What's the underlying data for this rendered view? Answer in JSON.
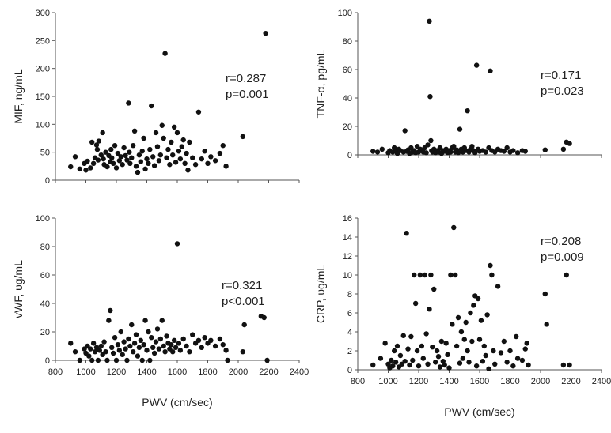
{
  "chart_data": [
    {
      "type": "scatter",
      "ylabel": "MIF, ng/mL",
      "xlabel": "",
      "xlim": [
        800,
        2400
      ],
      "ylim": [
        0,
        300
      ],
      "xticks": [],
      "yticks": [
        "0",
        "50",
        "100",
        "150",
        "200",
        "250",
        "300"
      ],
      "stats": [
        "r=0.287",
        "p=0.001"
      ],
      "points": [
        [
          900,
          24
        ],
        [
          930,
          42
        ],
        [
          960,
          20
        ],
        [
          990,
          30
        ],
        [
          1000,
          18
        ],
        [
          1010,
          34
        ],
        [
          1030,
          22
        ],
        [
          1040,
          68
        ],
        [
          1050,
          30
        ],
        [
          1060,
          40
        ],
        [
          1070,
          63
        ],
        [
          1075,
          55
        ],
        [
          1080,
          36
        ],
        [
          1085,
          70
        ],
        [
          1100,
          45
        ],
        [
          1110,
          85
        ],
        [
          1115,
          38
        ],
        [
          1120,
          28
        ],
        [
          1130,
          50
        ],
        [
          1140,
          24
        ],
        [
          1150,
          44
        ],
        [
          1160,
          33
        ],
        [
          1165,
          55
        ],
        [
          1170,
          40
        ],
        [
          1180,
          30
        ],
        [
          1190,
          62
        ],
        [
          1200,
          22
        ],
        [
          1210,
          48
        ],
        [
          1220,
          35
        ],
        [
          1230,
          42
        ],
        [
          1240,
          28
        ],
        [
          1250,
          58
        ],
        [
          1260,
          44
        ],
        [
          1270,
          36
        ],
        [
          1280,
          138
        ],
        [
          1285,
          50
        ],
        [
          1290,
          30
        ],
        [
          1300,
          40
        ],
        [
          1310,
          62
        ],
        [
          1320,
          88
        ],
        [
          1330,
          25
        ],
        [
          1340,
          14
        ],
        [
          1350,
          45
        ],
        [
          1360,
          33
        ],
        [
          1370,
          52
        ],
        [
          1380,
          75
        ],
        [
          1390,
          20
        ],
        [
          1400,
          38
        ],
        [
          1410,
          30
        ],
        [
          1420,
          55
        ],
        [
          1430,
          133
        ],
        [
          1440,
          42
        ],
        [
          1450,
          26
        ],
        [
          1460,
          85
        ],
        [
          1470,
          60
        ],
        [
          1480,
          35
        ],
        [
          1490,
          45
        ],
        [
          1500,
          98
        ],
        [
          1510,
          75
        ],
        [
          1520,
          227
        ],
        [
          1530,
          40
        ],
        [
          1540,
          55
        ],
        [
          1550,
          28
        ],
        [
          1560,
          68
        ],
        [
          1570,
          45
        ],
        [
          1580,
          95
        ],
        [
          1590,
          32
        ],
        [
          1600,
          85
        ],
        [
          1610,
          52
        ],
        [
          1620,
          38
        ],
        [
          1630,
          60
        ],
        [
          1640,
          72
        ],
        [
          1650,
          30
        ],
        [
          1660,
          48
        ],
        [
          1670,
          18
        ],
        [
          1680,
          68
        ],
        [
          1700,
          40
        ],
        [
          1720,
          28
        ],
        [
          1740,
          122
        ],
        [
          1760,
          38
        ],
        [
          1780,
          52
        ],
        [
          1800,
          30
        ],
        [
          1820,
          42
        ],
        [
          1850,
          35
        ],
        [
          1880,
          48
        ],
        [
          1900,
          62
        ],
        [
          1920,
          25
        ],
        [
          2030,
          78
        ],
        [
          2180,
          263
        ]
      ]
    },
    {
      "type": "scatter",
      "ylabel": "TNF-α, pg/mL",
      "xlabel": "",
      "xlim": [
        800,
        2400
      ],
      "ylim": [
        0,
        100
      ],
      "xticks": [],
      "yticks": [
        "0",
        "20",
        "40",
        "60",
        "80",
        "100"
      ],
      "stats": [
        "r=0.171",
        "p=0.023"
      ],
      "points": [
        [
          900,
          2.5
        ],
        [
          930,
          2
        ],
        [
          960,
          4
        ],
        [
          1000,
          1.5
        ],
        [
          1010,
          3
        ],
        [
          1030,
          2
        ],
        [
          1040,
          5
        ],
        [
          1050,
          2.5
        ],
        [
          1060,
          1
        ],
        [
          1070,
          4
        ],
        [
          1080,
          3
        ],
        [
          1100,
          2
        ],
        [
          1110,
          17
        ],
        [
          1120,
          2.5
        ],
        [
          1130,
          3.5
        ],
        [
          1140,
          1
        ],
        [
          1150,
          5
        ],
        [
          1160,
          2
        ],
        [
          1170,
          3
        ],
        [
          1180,
          1.5
        ],
        [
          1190,
          6
        ],
        [
          1200,
          2
        ],
        [
          1210,
          4
        ],
        [
          1220,
          3
        ],
        [
          1230,
          2
        ],
        [
          1240,
          5
        ],
        [
          1250,
          1.5
        ],
        [
          1260,
          7
        ],
        [
          1270,
          94
        ],
        [
          1275,
          41
        ],
        [
          1280,
          10
        ],
        [
          1285,
          3
        ],
        [
          1290,
          2
        ],
        [
          1300,
          4
        ],
        [
          1310,
          1.5
        ],
        [
          1320,
          3
        ],
        [
          1330,
          2
        ],
        [
          1340,
          5
        ],
        [
          1350,
          1
        ],
        [
          1360,
          3
        ],
        [
          1370,
          2.5
        ],
        [
          1380,
          4
        ],
        [
          1390,
          1.5
        ],
        [
          1400,
          3
        ],
        [
          1410,
          2
        ],
        [
          1420,
          5
        ],
        [
          1430,
          6
        ],
        [
          1440,
          2
        ],
        [
          1450,
          3.5
        ],
        [
          1460,
          1.5
        ],
        [
          1470,
          18
        ],
        [
          1480,
          4
        ],
        [
          1490,
          2
        ],
        [
          1500,
          5
        ],
        [
          1510,
          3
        ],
        [
          1520,
          31
        ],
        [
          1530,
          2
        ],
        [
          1540,
          4
        ],
        [
          1550,
          6
        ],
        [
          1560,
          3
        ],
        [
          1570,
          1.5
        ],
        [
          1580,
          63
        ],
        [
          1590,
          4
        ],
        [
          1600,
          2.5
        ],
        [
          1620,
          3
        ],
        [
          1640,
          2
        ],
        [
          1660,
          5
        ],
        [
          1670,
          59
        ],
        [
          1680,
          3
        ],
        [
          1700,
          2
        ],
        [
          1720,
          4
        ],
        [
          1740,
          3
        ],
        [
          1760,
          2.5
        ],
        [
          1780,
          5
        ],
        [
          1800,
          2
        ],
        [
          1820,
          3
        ],
        [
          1850,
          1.5
        ],
        [
          1880,
          3
        ],
        [
          1900,
          2.5
        ],
        [
          2030,
          3.5
        ],
        [
          2150,
          4
        ],
        [
          2170,
          9
        ],
        [
          2190,
          8
        ]
      ]
    },
    {
      "type": "scatter",
      "ylabel": "vWF, υg/mL",
      "xlabel": "PWV (cm/sec)",
      "xlim": [
        800,
        2400
      ],
      "ylim": [
        0,
        100
      ],
      "xticks": [
        "800",
        "1000",
        "1200",
        "1400",
        "1600",
        "1800",
        "2000",
        "2200",
        "2400"
      ],
      "yticks": [
        "0",
        "20",
        "40",
        "60",
        "80",
        "100"
      ],
      "stats": [
        "r=0.321",
        "p<0.001"
      ],
      "points": [
        [
          900,
          12
        ],
        [
          930,
          6
        ],
        [
          960,
          0
        ],
        [
          990,
          8
        ],
        [
          1000,
          5
        ],
        [
          1010,
          10
        ],
        [
          1020,
          3
        ],
        [
          1030,
          8
        ],
        [
          1040,
          0
        ],
        [
          1050,
          12
        ],
        [
          1060,
          6
        ],
        [
          1070,
          9
        ],
        [
          1080,
          0
        ],
        [
          1090,
          7
        ],
        [
          1100,
          10
        ],
        [
          1110,
          4
        ],
        [
          1120,
          13
        ],
        [
          1130,
          6
        ],
        [
          1140,
          0
        ],
        [
          1150,
          28
        ],
        [
          1160,
          35
        ],
        [
          1170,
          9
        ],
        [
          1180,
          5
        ],
        [
          1190,
          16
        ],
        [
          1200,
          0
        ],
        [
          1210,
          11
        ],
        [
          1220,
          7
        ],
        [
          1230,
          20
        ],
        [
          1240,
          4
        ],
        [
          1250,
          13
        ],
        [
          1260,
          8
        ],
        [
          1270,
          0
        ],
        [
          1280,
          15
        ],
        [
          1290,
          10
        ],
        [
          1300,
          25
        ],
        [
          1310,
          6
        ],
        [
          1320,
          12
        ],
        [
          1330,
          18
        ],
        [
          1340,
          3
        ],
        [
          1350,
          9
        ],
        [
          1360,
          14
        ],
        [
          1370,
          0
        ],
        [
          1380,
          11
        ],
        [
          1390,
          28
        ],
        [
          1400,
          7
        ],
        [
          1410,
          20
        ],
        [
          1420,
          0
        ],
        [
          1430,
          16
        ],
        [
          1440,
          9
        ],
        [
          1450,
          5
        ],
        [
          1460,
          13
        ],
        [
          1470,
          22
        ],
        [
          1480,
          8
        ],
        [
          1490,
          15
        ],
        [
          1500,
          28
        ],
        [
          1510,
          10
        ],
        [
          1520,
          6
        ],
        [
          1530,
          17
        ],
        [
          1540,
          12
        ],
        [
          1550,
          8
        ],
        [
          1560,
          11
        ],
        [
          1570,
          6
        ],
        [
          1580,
          14
        ],
        [
          1590,
          9
        ],
        [
          1600,
          82
        ],
        [
          1610,
          12
        ],
        [
          1620,
          7
        ],
        [
          1640,
          15
        ],
        [
          1660,
          10
        ],
        [
          1680,
          6
        ],
        [
          1700,
          18
        ],
        [
          1720,
          12
        ],
        [
          1740,
          14
        ],
        [
          1760,
          9
        ],
        [
          1780,
          16
        ],
        [
          1800,
          12
        ],
        [
          1820,
          14
        ],
        [
          1850,
          10
        ],
        [
          1880,
          15
        ],
        [
          1900,
          11
        ],
        [
          1920,
          7
        ],
        [
          1930,
          0
        ],
        [
          2030,
          6
        ],
        [
          2040,
          25
        ],
        [
          2150,
          31
        ],
        [
          2170,
          30
        ],
        [
          2190,
          0
        ]
      ]
    },
    {
      "type": "scatter",
      "ylabel": "CRP, υg/mL",
      "xlabel": "PWV (cm/sec)",
      "xlim": [
        800,
        2400
      ],
      "ylim": [
        0,
        16
      ],
      "xticks": [
        "800",
        "1000",
        "1200",
        "1400",
        "1600",
        "1800",
        "2000",
        "2200",
        "2400"
      ],
      "yticks": [
        "0",
        "2",
        "4",
        "6",
        "8",
        "10",
        "12",
        "14",
        "16"
      ],
      "stats": [
        "r=0.208",
        "p=0.009"
      ],
      "points": [
        [
          900,
          0.5
        ],
        [
          950,
          1.2
        ],
        [
          980,
          2.8
        ],
        [
          1000,
          0.6
        ],
        [
          1010,
          0.2
        ],
        [
          1020,
          1.0
        ],
        [
          1030,
          0.4
        ],
        [
          1040,
          2.0
        ],
        [
          1050,
          0.8
        ],
        [
          1060,
          2.5
        ],
        [
          1070,
          0.3
        ],
        [
          1080,
          1.5
        ],
        [
          1090,
          0.6
        ],
        [
          1100,
          3.6
        ],
        [
          1110,
          0.9
        ],
        [
          1120,
          14.4
        ],
        [
          1130,
          2.2
        ],
        [
          1140,
          0.5
        ],
        [
          1150,
          3.5
        ],
        [
          1160,
          1.0
        ],
        [
          1170,
          10.0
        ],
        [
          1180,
          7.0
        ],
        [
          1190,
          2.0
        ],
        [
          1200,
          0.4
        ],
        [
          1210,
          10.0
        ],
        [
          1220,
          2.5
        ],
        [
          1230,
          1.2
        ],
        [
          1240,
          10.0
        ],
        [
          1250,
          3.8
        ],
        [
          1260,
          0.6
        ],
        [
          1270,
          6.4
        ],
        [
          1280,
          10.0
        ],
        [
          1290,
          2.4
        ],
        [
          1300,
          8.5
        ],
        [
          1310,
          0.8
        ],
        [
          1320,
          2.0
        ],
        [
          1330,
          1.4
        ],
        [
          1340,
          0.3
        ],
        [
          1350,
          3.0
        ],
        [
          1360,
          0.9
        ],
        [
          1370,
          0.5
        ],
        [
          1380,
          2.8
        ],
        [
          1390,
          1.6
        ],
        [
          1400,
          0.2
        ],
        [
          1410,
          10.0
        ],
        [
          1420,
          4.8
        ],
        [
          1430,
          15.0
        ],
        [
          1440,
          10.0
        ],
        [
          1450,
          2.5
        ],
        [
          1460,
          5.5
        ],
        [
          1470,
          0.7
        ],
        [
          1480,
          4.0
        ],
        [
          1490,
          1.2
        ],
        [
          1500,
          3.2
        ],
        [
          1510,
          5.0
        ],
        [
          1520,
          2.0
        ],
        [
          1530,
          0.8
        ],
        [
          1540,
          6.0
        ],
        [
          1550,
          3.0
        ],
        [
          1560,
          6.8
        ],
        [
          1570,
          7.8
        ],
        [
          1580,
          0.4
        ],
        [
          1590,
          7.5
        ],
        [
          1600,
          3.2
        ],
        [
          1610,
          5.2
        ],
        [
          1620,
          0.9
        ],
        [
          1630,
          2.5
        ],
        [
          1640,
          1.5
        ],
        [
          1650,
          5.8
        ],
        [
          1660,
          0.1
        ],
        [
          1670,
          11.0
        ],
        [
          1680,
          10.0
        ],
        [
          1690,
          2.0
        ],
        [
          1700,
          0.6
        ],
        [
          1720,
          8.8
        ],
        [
          1740,
          1.8
        ],
        [
          1760,
          3.0
        ],
        [
          1780,
          0.8
        ],
        [
          1800,
          2.0
        ],
        [
          1820,
          0.4
        ],
        [
          1840,
          3.5
        ],
        [
          1850,
          1.2
        ],
        [
          1880,
          1.0
        ],
        [
          1900,
          2.2
        ],
        [
          1910,
          2.8
        ],
        [
          1920,
          0.5
        ],
        [
          2030,
          8.0
        ],
        [
          2040,
          4.8
        ],
        [
          2150,
          0.5
        ],
        [
          2170,
          10.0
        ],
        [
          2190,
          0.5
        ]
      ]
    }
  ]
}
